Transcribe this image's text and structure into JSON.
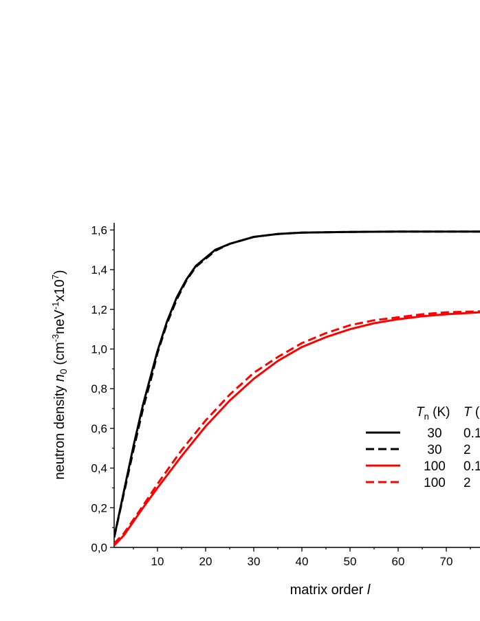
{
  "chart_data": {
    "type": "line",
    "xlabel": "matrix order",
    "xlabel_symbol": "l",
    "ylabel": {
      "prefix": "neutron density ",
      "symbol": "n",
      "symbol_sub": "0",
      "unit_a": " (cm",
      "unit_a_sup": "-3",
      "unit_b": "neV",
      "unit_b_sup": "-1",
      "unit_c": "x10",
      "unit_c_sup": "7",
      "unit_end": ")"
    },
    "xlim": [
      1,
      77
    ],
    "ylim": [
      0.0,
      1.65
    ],
    "xticks": [
      10,
      20,
      30,
      40,
      50,
      60,
      70
    ],
    "xtick_labels": [
      "10",
      "20",
      "30",
      "40",
      "50",
      "60",
      "70"
    ],
    "yticks": [
      0.0,
      0.2,
      0.4,
      0.6,
      0.8,
      1.0,
      1.2,
      1.4,
      1.6
    ],
    "ytick_labels": [
      "0,0",
      "0,2",
      "0,4",
      "0,6",
      "0,8",
      "1,0",
      "1,2",
      "1,4",
      "1,6"
    ],
    "grid": false,
    "legend_position": "right",
    "legend_header": {
      "tn_symbol": "T",
      "tn_sub": "n",
      "tn_unit": " (K)",
      "t_symbol": "T",
      "t_unit": " ("
    },
    "series": [
      {
        "tn_label": "30",
        "t_label": "0.1",
        "color": "#000000",
        "dash": "solid",
        "x": [
          1,
          3,
          5,
          7,
          9,
          10,
          12,
          14,
          16,
          18,
          20,
          22,
          25,
          30,
          35,
          40,
          50,
          60,
          70,
          77
        ],
        "y": [
          0.05,
          0.28,
          0.51,
          0.72,
          0.9,
          0.99,
          1.14,
          1.26,
          1.35,
          1.42,
          1.46,
          1.5,
          1.53,
          1.565,
          1.58,
          1.587,
          1.59,
          1.592,
          1.592,
          1.592
        ]
      },
      {
        "tn_label": "30",
        "t_label": "2",
        "color": "#000000",
        "dash": "dashed",
        "x": [
          1,
          3,
          5,
          7,
          9,
          10,
          12,
          14,
          16,
          18,
          20,
          22,
          25,
          30,
          35,
          40,
          50,
          60,
          70,
          77
        ],
        "y": [
          0.05,
          0.27,
          0.49,
          0.7,
          0.88,
          0.98,
          1.13,
          1.25,
          1.345,
          1.415,
          1.455,
          1.495,
          1.53,
          1.565,
          1.58,
          1.587,
          1.59,
          1.592,
          1.592,
          1.592
        ]
      },
      {
        "tn_label": "100",
        "t_label": "0.1",
        "color": "#ff0000",
        "dash": "solid",
        "x": [
          1,
          3,
          5,
          7,
          10,
          15,
          20,
          25,
          30,
          35,
          40,
          45,
          50,
          55,
          60,
          65,
          70,
          77
        ],
        "y": [
          0.01,
          0.06,
          0.13,
          0.2,
          0.3,
          0.46,
          0.61,
          0.74,
          0.85,
          0.94,
          1.01,
          1.06,
          1.1,
          1.13,
          1.15,
          1.165,
          1.175,
          1.185
        ]
      },
      {
        "tn_label": "100",
        "t_label": "2",
        "color": "#ff0000",
        "dash": "dashed",
        "x": [
          1,
          3,
          5,
          7,
          10,
          15,
          20,
          25,
          30,
          35,
          40,
          45,
          50,
          55,
          60,
          65,
          70,
          77
        ],
        "y": [
          0.02,
          0.07,
          0.14,
          0.21,
          0.32,
          0.49,
          0.64,
          0.77,
          0.88,
          0.96,
          1.03,
          1.08,
          1.12,
          1.145,
          1.16,
          1.175,
          1.185,
          1.19
        ]
      }
    ]
  }
}
